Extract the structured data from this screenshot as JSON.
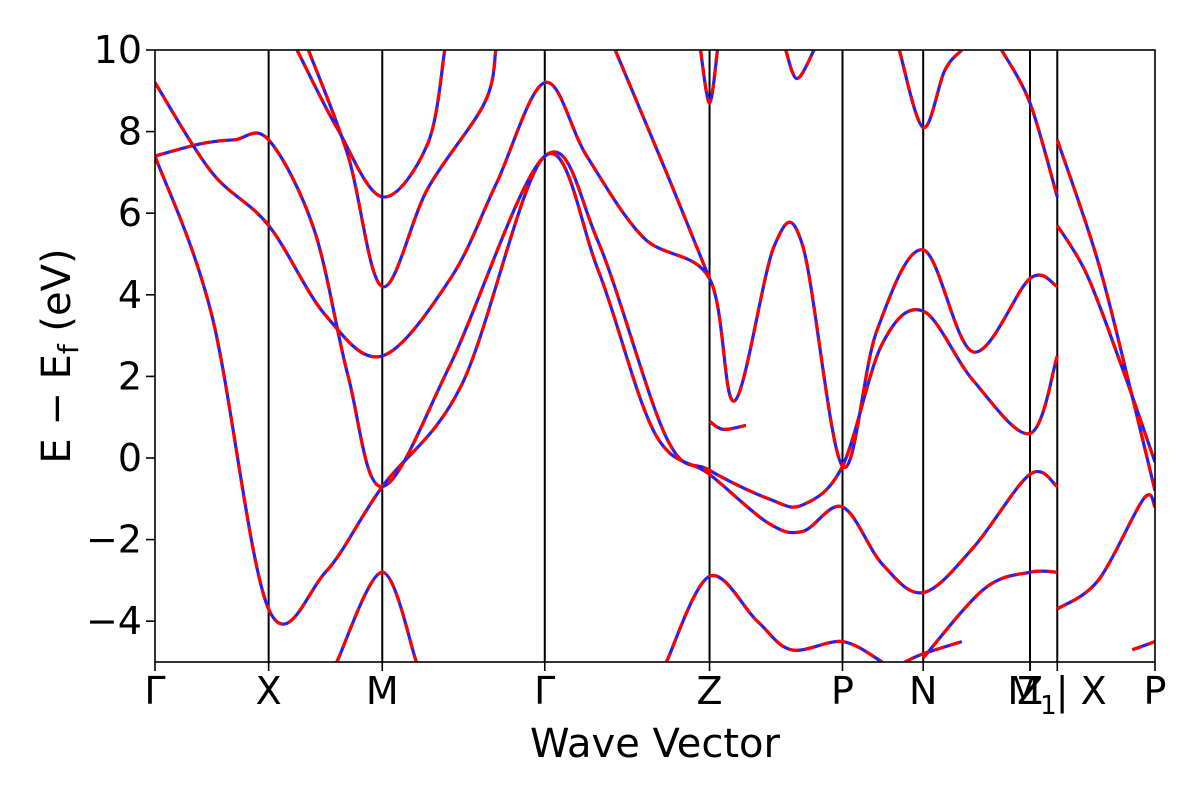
{
  "chart_data": {
    "type": "line",
    "xlabel": "Wave Vector",
    "ylabel": "E − E",
    "ylabel_sub": "f",
    "ylabel_unit": " (eV)",
    "ylim": [
      -5,
      10
    ],
    "xlim": [
      0,
      8.8
    ],
    "yticks": [
      -4,
      -2,
      0,
      2,
      4,
      6,
      8,
      10
    ],
    "ytick_labels": [
      "−4",
      "−2",
      "0",
      "2",
      "4",
      "6",
      "8",
      "10"
    ],
    "kpoints": [
      {
        "label": "Γ",
        "x": 0.0
      },
      {
        "label": "X",
        "x": 1.0
      },
      {
        "label": "M",
        "x": 2.0
      },
      {
        "label": "Γ",
        "x": 3.43
      },
      {
        "label": "Z",
        "x": 4.88
      },
      {
        "label": "P",
        "x": 6.05
      },
      {
        "label": "N",
        "x": 6.76
      },
      {
        "label": "Z",
        "x": 7.7
      },
      {
        "label": "M",
        "x": 7.7,
        "sub": "1"
      },
      {
        "label": "| X",
        "x": 7.94
      },
      {
        "label": "P",
        "x": 8.8
      }
    ],
    "series": [
      {
        "color": "#1f1fff",
        "bands": [
          {
            "segments": [
              [
                [
                  0,
                  7.4
                ],
                [
                  0.5,
                  3.5
                ],
                [
                  1.0,
                  -3.7
                ],
                [
                  1.5,
                  -2.8
                ],
                [
                  2.0,
                  -0.7
                ],
                [
                  2.7,
                  1.8
                ],
                [
                  3.43,
                  7.4
                ],
                [
                  3.9,
                  4.6
                ],
                [
                  4.4,
                  0.6
                ],
                [
                  4.88,
                  -0.4
                ],
                [
                  5.4,
                  -1.6
                ],
                [
                  5.7,
                  -1.8
                ],
                [
                  6.05,
                  -1.2
                ],
                [
                  6.4,
                  -2.6
                ],
                [
                  6.76,
                  -3.3
                ],
                [
                  7.2,
                  -2.2
                ],
                [
                  7.7,
                  -0.4
                ],
                [
                  7.94,
                  -0.7
                ]
              ],
              [
                [
                  7.94,
                  -3.7
                ],
                [
                  8.3,
                  -3.0
                ],
                [
                  8.7,
                  -1.0
                ],
                [
                  8.8,
                  -1.2
                ]
              ]
            ]
          },
          {
            "segments": [
              [
                [
                  0,
                  7.4
                ],
                [
                  0.4,
                  7.7
                ],
                [
                  0.7,
                  7.8
                ],
                [
                  1.0,
                  7.8
                ],
                [
                  1.4,
                  5.6
                ],
                [
                  1.7,
                  2.0
                ],
                [
                  2.0,
                  -0.7
                ],
                [
                  2.6,
                  2.3
                ],
                [
                  3.43,
                  7.4
                ],
                [
                  3.9,
                  5.3
                ],
                [
                  4.5,
                  0.5
                ],
                [
                  4.88,
                  -0.3
                ],
                [
                  5.4,
                  -1.0
                ],
                [
                  5.7,
                  -1.15
                ],
                [
                  6.05,
                  -0.2
                ],
                [
                  6.4,
                  2.8
                ],
                [
                  6.76,
                  3.6
                ],
                [
                  7.2,
                  1.9
                ],
                [
                  7.7,
                  0.6
                ],
                [
                  7.94,
                  2.5
                ]
              ],
              [
                [
                  7.94,
                  5.7
                ],
                [
                  8.2,
                  4.5
                ],
                [
                  8.5,
                  2.3
                ],
                [
                  8.8,
                  -0.1
                ]
              ]
            ]
          },
          {
            "segments": [
              [
                [
                  0,
                  9.2
                ],
                [
                  0.5,
                  7.0
                ],
                [
                  1.0,
                  5.7
                ],
                [
                  1.5,
                  3.5
                ],
                [
                  2.0,
                  2.5
                ],
                [
                  2.6,
                  4.4
                ],
                [
                  3.0,
                  6.7
                ],
                [
                  3.43,
                  9.2
                ],
                [
                  3.8,
                  7.4
                ],
                [
                  4.3,
                  5.4
                ],
                [
                  4.88,
                  4.4
                ],
                [
                  5.1,
                  1.4
                ],
                [
                  5.45,
                  5.2
                ],
                [
                  5.7,
                  5.2
                ],
                [
                  6.05,
                  -0.2
                ],
                [
                  6.35,
                  3.1
                ],
                [
                  6.76,
                  5.1
                ],
                [
                  7.2,
                  2.6
                ],
                [
                  7.7,
                  4.4
                ],
                [
                  7.94,
                  4.2
                ]
              ],
              [
                [
                  7.94,
                  7.8
                ],
                [
                  8.3,
                  4.8
                ],
                [
                  8.6,
                  1.5
                ],
                [
                  8.8,
                  -0.8
                ]
              ]
            ]
          },
          {
            "segments": [
              [
                [
                  1.25,
                  10.0
                ],
                [
                  1.6,
                  8.1
                ],
                [
                  2.0,
                  6.4
                ],
                [
                  2.4,
                  7.7
                ],
                [
                  2.55,
                  10.0
                ]
              ],
              [
                [
                  1.35,
                  10.0
                ],
                [
                  1.7,
                  7.4
                ],
                [
                  2.0,
                  4.2
                ],
                [
                  2.4,
                  6.6
                ],
                [
                  2.9,
                  8.7
                ],
                [
                  3.0,
                  10.0
                ]
              ],
              [
                [
                  4.05,
                  10.0
                ],
                [
                  4.5,
                  7.0
                ],
                [
                  4.88,
                  4.4
                ]
              ],
              [
                [
                  4.88,
                  0.9
                ],
                [
                  5.0,
                  0.7
                ],
                [
                  5.2,
                  0.8
                ]
              ],
              [
                [
                  1.6,
                  -5.0
                ],
                [
                  2.0,
                  -2.8
                ],
                [
                  2.3,
                  -5.0
                ]
              ],
              [
                [
                  4.5,
                  -5.0
                ],
                [
                  4.88,
                  -2.9
                ],
                [
                  5.3,
                  -4.0
                ],
                [
                  5.6,
                  -4.7
                ],
                [
                  6.05,
                  -4.5
                ],
                [
                  6.4,
                  -5.0
                ]
              ],
              [
                [
                  6.6,
                  -5.0
                ],
                [
                  6.76,
                  -4.8
                ],
                [
                  7.1,
                  -4.5
                ]
              ],
              [
                [
                  7.94,
                  -2.8
                ],
                [
                  7.7,
                  -2.8
                ],
                [
                  7.3,
                  -3.2
                ],
                [
                  6.76,
                  -4.9
                ]
              ],
              [
                [
                  8.6,
                  -4.7
                ],
                [
                  8.8,
                  -4.5
                ]
              ],
              [
                [
                  4.8,
                  10.0
                ],
                [
                  4.88,
                  8.7
                ],
                [
                  4.95,
                  10.0
                ]
              ],
              [
                [
                  5.55,
                  10.0
                ],
                [
                  5.65,
                  9.3
                ],
                [
                  5.8,
                  10.0
                ]
              ],
              [
                [
                  6.55,
                  10.0
                ],
                [
                  6.76,
                  8.1
                ],
                [
                  6.95,
                  9.5
                ],
                [
                  7.1,
                  10.0
                ]
              ],
              [
                [
                  7.45,
                  10.0
                ],
                [
                  7.7,
                  8.7
                ],
                [
                  7.94,
                  6.4
                ]
              ]
            ]
          }
        ]
      }
    ]
  }
}
